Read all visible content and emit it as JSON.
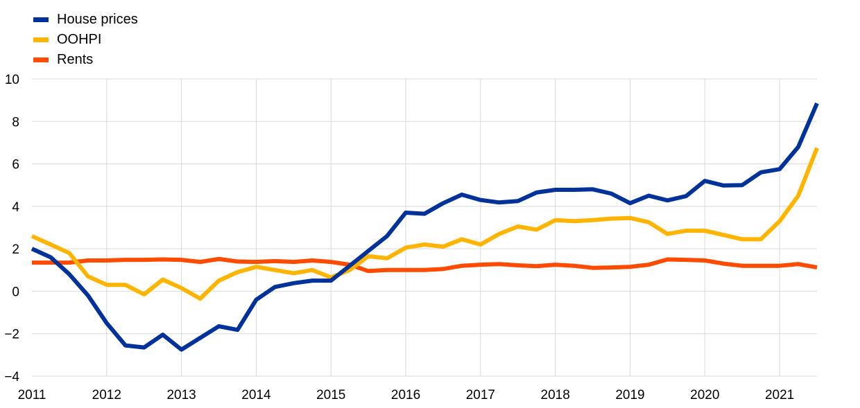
{
  "chart_data": {
    "type": "line",
    "x_start_year": 2011,
    "x_tick_labels": [
      "2011",
      "2012",
      "2013",
      "2014",
      "2015",
      "2016",
      "2017",
      "2018",
      "2019",
      "2020",
      "2021"
    ],
    "ylim": [
      -4,
      10
    ],
    "y_ticks": [
      -4,
      -2,
      0,
      2,
      4,
      6,
      8,
      10
    ],
    "grid": "vertical-and-horizontal",
    "legend_position": "top-left",
    "series": [
      {
        "name": "House prices",
        "color": "#003299",
        "values": [
          2.0,
          1.6,
          0.8,
          -0.2,
          -1.5,
          -2.55,
          -2.65,
          -2.05,
          -2.75,
          -2.2,
          -1.65,
          -1.82,
          -0.4,
          0.2,
          0.38,
          0.5,
          0.5,
          1.2,
          1.9,
          2.6,
          3.7,
          3.65,
          4.15,
          4.55,
          4.3,
          4.18,
          4.25,
          4.65,
          4.78,
          4.78,
          4.8,
          4.6,
          4.15,
          4.5,
          4.28,
          4.48,
          5.2,
          4.98,
          5.0,
          5.6,
          5.75,
          6.8,
          8.85
        ]
      },
      {
        "name": "OOHPI",
        "color": "#FFB400",
        "values": [
          2.6,
          2.2,
          1.8,
          0.7,
          0.3,
          0.3,
          -0.15,
          0.55,
          0.15,
          -0.35,
          0.5,
          0.9,
          1.15,
          1.0,
          0.85,
          1.0,
          0.65,
          1.0,
          1.65,
          1.55,
          2.05,
          2.2,
          2.1,
          2.45,
          2.2,
          2.7,
          3.05,
          2.9,
          3.35,
          3.3,
          3.35,
          3.42,
          3.45,
          3.25,
          2.7,
          2.85,
          2.85,
          2.65,
          2.45,
          2.45,
          3.3,
          4.5,
          6.75
        ]
      },
      {
        "name": "Rents",
        "color": "#FF4B00",
        "values": [
          1.35,
          1.35,
          1.35,
          1.45,
          1.45,
          1.48,
          1.48,
          1.5,
          1.48,
          1.38,
          1.52,
          1.4,
          1.38,
          1.42,
          1.38,
          1.45,
          1.38,
          1.25,
          0.95,
          1.0,
          1.0,
          1.0,
          1.05,
          1.2,
          1.25,
          1.28,
          1.22,
          1.18,
          1.25,
          1.2,
          1.1,
          1.12,
          1.15,
          1.25,
          1.5,
          1.48,
          1.45,
          1.3,
          1.2,
          1.2,
          1.2,
          1.28,
          1.12
        ]
      }
    ]
  }
}
